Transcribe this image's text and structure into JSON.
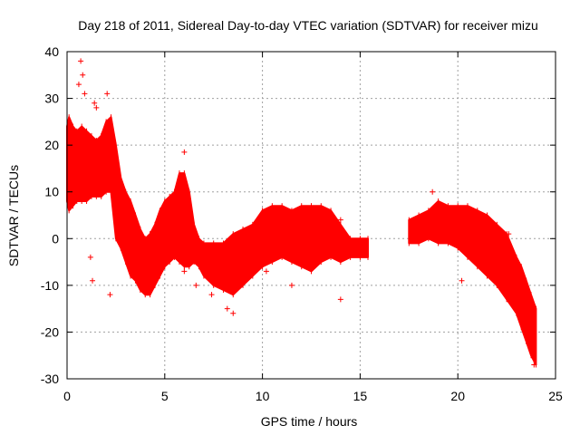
{
  "chart_data": {
    "type": "scatter",
    "title": "Day 218 of 2011, Sidereal Day-to-day VTEC variation (SDTVAR) for receiver mizu",
    "xlabel": "GPS time / hours",
    "ylabel": "SDTVAR / TECUs",
    "xlim": [
      0,
      25
    ],
    "ylim": [
      -30,
      40
    ],
    "xticks": [
      0,
      5,
      10,
      15,
      20,
      25
    ],
    "yticks": [
      -30,
      -20,
      -10,
      0,
      10,
      20,
      30,
      40
    ],
    "grid": true,
    "marker": "+",
    "series_color": "#ff0000",
    "series": [
      {
        "name": "SDTVAR",
        "envelope_x": [
          0.0,
          0.1,
          0.3,
          0.5,
          0.75,
          1.0,
          1.25,
          1.5,
          1.75,
          2.0,
          2.25,
          2.5,
          2.75,
          3.0,
          3.25,
          3.5,
          3.75,
          4.0,
          4.25,
          4.5,
          4.75,
          5.0,
          5.25,
          5.5,
          5.75,
          6.0,
          6.25,
          6.5,
          6.75,
          7.0,
          7.5,
          8.0,
          8.5,
          9.0,
          9.5,
          10.0,
          10.5,
          11.0,
          11.5,
          12.0,
          12.5,
          13.0,
          13.5,
          14.0,
          14.5,
          15.0,
          15.4,
          17.5,
          18.0,
          18.5,
          19.0,
          19.5,
          20.0,
          20.5,
          21.0,
          21.5,
          22.0,
          22.5,
          23.0,
          23.25,
          23.5,
          23.75,
          24.0
        ],
        "upper": [
          24,
          26,
          24,
          23,
          24,
          23,
          22,
          21,
          22,
          25,
          26,
          20,
          13,
          10,
          8,
          5,
          2,
          0,
          1,
          3,
          6,
          8,
          9,
          10,
          14,
          14,
          10,
          3,
          0,
          -1,
          -1,
          -1,
          1,
          2,
          3,
          6,
          7,
          7,
          6,
          7,
          7,
          7,
          6,
          3,
          0,
          0,
          0,
          4,
          5,
          6,
          8,
          7,
          7,
          7,
          6,
          5,
          3,
          1,
          -4,
          -6,
          -9,
          -12,
          -15
        ],
        "lower": [
          8,
          6,
          7,
          8,
          8,
          8,
          9,
          9,
          9,
          10,
          10,
          0,
          -2,
          -5,
          -8,
          -9,
          -11,
          -12,
          -12,
          -10,
          -8,
          -6,
          -5,
          -4,
          -5,
          -6,
          -6,
          -5,
          -6,
          -8,
          -10,
          -11,
          -12,
          -10,
          -8,
          -6,
          -5,
          -4,
          -5,
          -6,
          -7,
          -5,
          -4,
          -5,
          -4,
          -4,
          -4,
          -1,
          -1,
          0,
          -1,
          -1,
          -2,
          -4,
          -6,
          -8,
          -10,
          -13,
          -16,
          -19,
          -22,
          -25,
          -27
        ],
        "outliers": [
          [
            0.7,
            38
          ],
          [
            0.8,
            35
          ],
          [
            0.6,
            33
          ],
          [
            0.9,
            31
          ],
          [
            1.4,
            29
          ],
          [
            1.5,
            28
          ],
          [
            2.05,
            31
          ],
          [
            1.2,
            -4
          ],
          [
            1.3,
            -9
          ],
          [
            2.2,
            -12
          ],
          [
            6.0,
            18.5
          ],
          [
            6.0,
            -7
          ],
          [
            6.6,
            -10
          ],
          [
            7.4,
            -12
          ],
          [
            8.2,
            -15
          ],
          [
            8.5,
            -16
          ],
          [
            10.2,
            -7
          ],
          [
            11.5,
            -10
          ],
          [
            14.0,
            4
          ],
          [
            14.0,
            -13
          ],
          [
            18.7,
            10
          ],
          [
            20.2,
            -9
          ],
          [
            22.6,
            1
          ],
          [
            23.9,
            -27
          ]
        ]
      }
    ]
  }
}
